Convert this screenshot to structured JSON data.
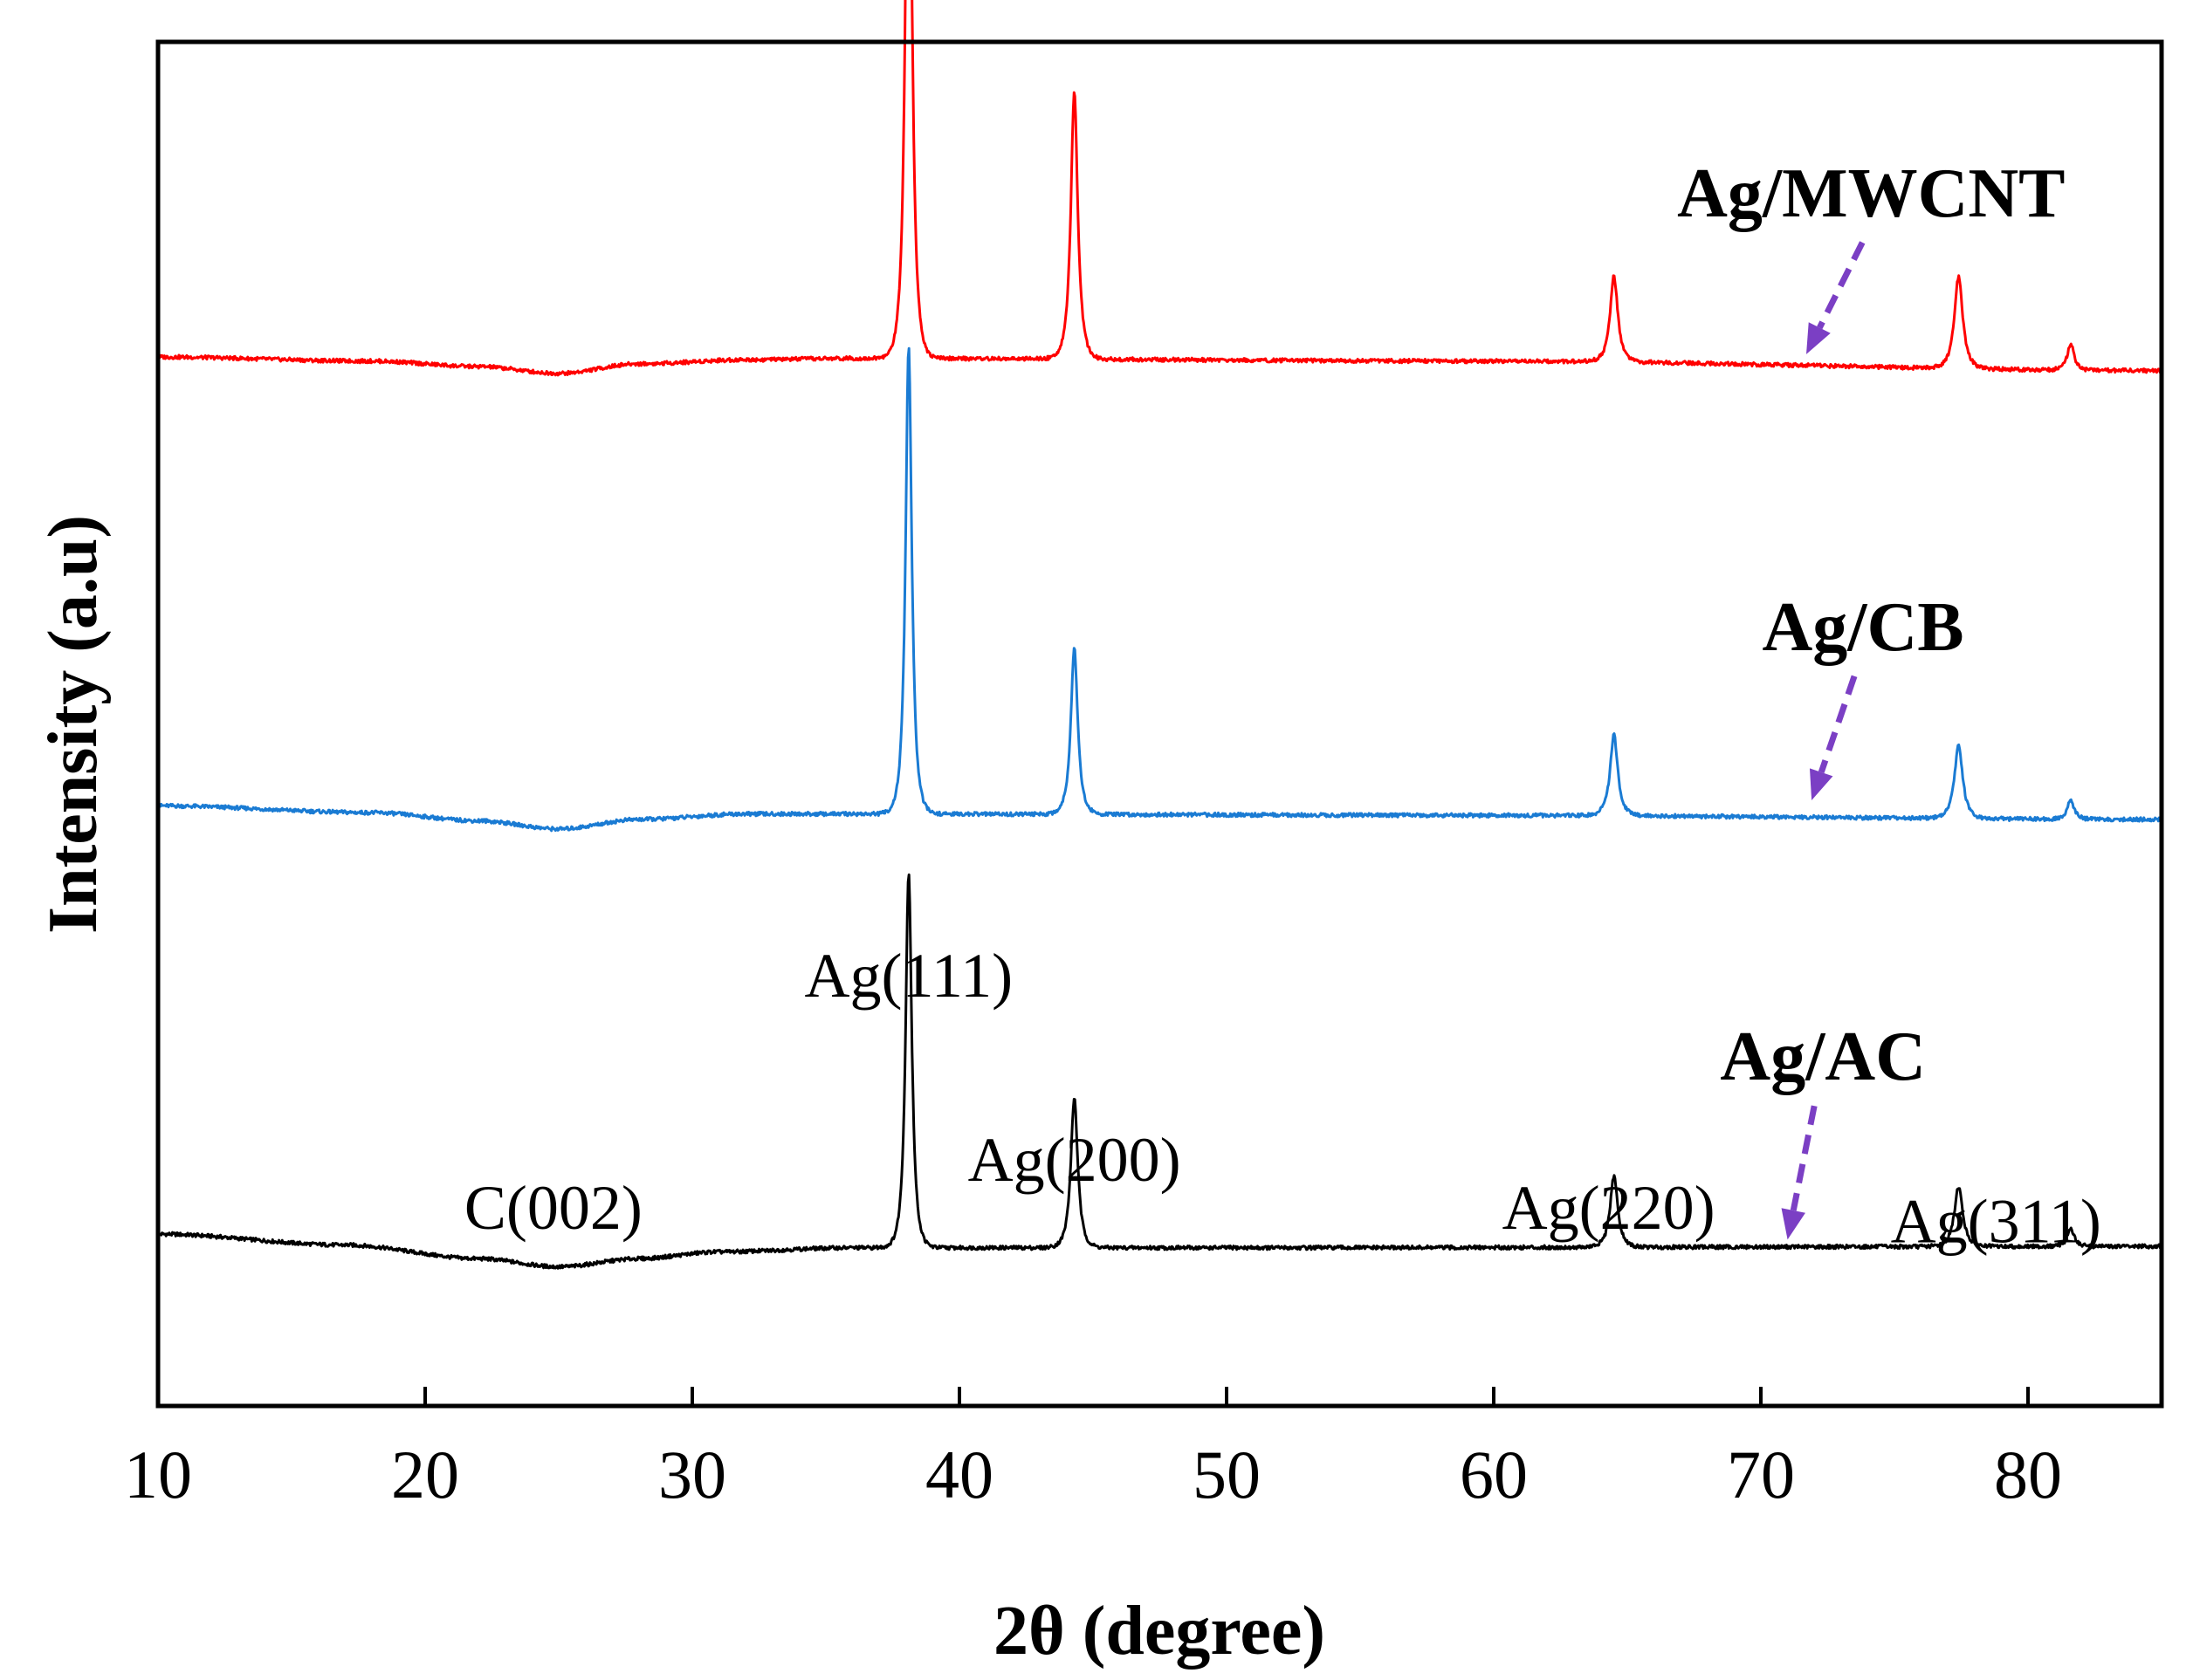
{
  "chart_data": {
    "type": "line",
    "title": "",
    "xlabel": "2θ (degree)",
    "ylabel": "Intensity (a.u)",
    "xlim": [
      10,
      85
    ],
    "xticks": [
      10,
      20,
      30,
      40,
      50,
      60,
      70,
      80
    ],
    "tick_labels": [
      "10",
      "20",
      "30",
      "40",
      "50",
      "60",
      "70",
      "80"
    ],
    "ylim": [
      0,
      100
    ],
    "yticks_shown": false,
    "grid": false,
    "series": [
      {
        "name": "Ag/AC",
        "label": "Ag/AC",
        "color": "#000000",
        "baseline": [
          [
            10,
            12.6
          ],
          [
            17,
            11.8
          ],
          [
            22,
            10.8
          ],
          [
            25,
            10.2
          ],
          [
            28,
            10.8
          ],
          [
            31,
            11.3
          ],
          [
            36,
            11.6
          ],
          [
            50,
            11.6
          ],
          [
            85,
            11.7
          ]
        ],
        "peaks": [
          {
            "x": 38.1,
            "height": 27.5,
            "width": 0.18
          },
          {
            "x": 44.3,
            "height": 11.0,
            "width": 0.2
          },
          {
            "x": 64.5,
            "height": 5.2,
            "width": 0.22
          },
          {
            "x": 77.4,
            "height": 4.4,
            "width": 0.24
          },
          {
            "x": 81.6,
            "height": 1.3,
            "width": 0.2
          }
        ],
        "arrow": {
          "from": [
            72.0,
            22.0
          ],
          "to": [
            71.0,
            12.2
          ]
        }
      },
      {
        "name": "Ag/CB",
        "label": "Ag/CB",
        "color": "#1a7bd3",
        "baseline": [
          [
            10,
            44.0
          ],
          [
            18,
            43.5
          ],
          [
            22,
            42.9
          ],
          [
            25,
            42.3
          ],
          [
            28,
            43.0
          ],
          [
            32,
            43.4
          ],
          [
            36,
            43.4
          ],
          [
            60,
            43.3
          ],
          [
            85,
            43.0
          ]
        ],
        "peaks": [
          {
            "x": 38.1,
            "height": 34.2,
            "width": 0.18
          },
          {
            "x": 44.3,
            "height": 12.2,
            "width": 0.2
          },
          {
            "x": 64.5,
            "height": 6.0,
            "width": 0.22
          },
          {
            "x": 77.4,
            "height": 5.3,
            "width": 0.24
          },
          {
            "x": 81.6,
            "height": 1.4,
            "width": 0.2
          }
        ],
        "arrow": {
          "from": [
            73.5,
            53.5
          ],
          "to": [
            71.9,
            44.4
          ]
        }
      },
      {
        "name": "Ag/MWCNT",
        "label": "Ag/MWCNT",
        "color": "#ff0000",
        "baseline": [
          [
            10,
            76.9
          ],
          [
            18,
            76.6
          ],
          [
            22,
            76.2
          ],
          [
            25,
            75.7
          ],
          [
            28,
            76.4
          ],
          [
            32,
            76.7
          ],
          [
            36,
            76.8
          ],
          [
            60,
            76.6
          ],
          [
            85,
            75.9
          ]
        ],
        "peaks": [
          {
            "x": 38.1,
            "height": 49.4,
            "width": 0.18
          },
          {
            "x": 44.3,
            "height": 19.5,
            "width": 0.2
          },
          {
            "x": 64.5,
            "height": 6.3,
            "width": 0.22
          },
          {
            "x": 77.4,
            "height": 6.7,
            "width": 0.24
          },
          {
            "x": 81.6,
            "height": 1.9,
            "width": 0.2
          }
        ],
        "arrow": {
          "from": [
            73.8,
            85.3
          ],
          "to": [
            71.7,
            77.1
          ]
        }
      }
    ],
    "annotations": [
      {
        "text": "Ag(111)",
        "x": 38.1,
        "y": 30.0
      },
      {
        "text": "Ag(200)",
        "x": 44.3,
        "y": 16.5
      },
      {
        "text": "Ag(220)",
        "x": 64.3,
        "y": 13.0
      },
      {
        "text": "Ag(311)",
        "x": 78.8,
        "y": 12.0
      },
      {
        "text": "C(002)",
        "x": 24.8,
        "y": 13.0
      }
    ]
  }
}
